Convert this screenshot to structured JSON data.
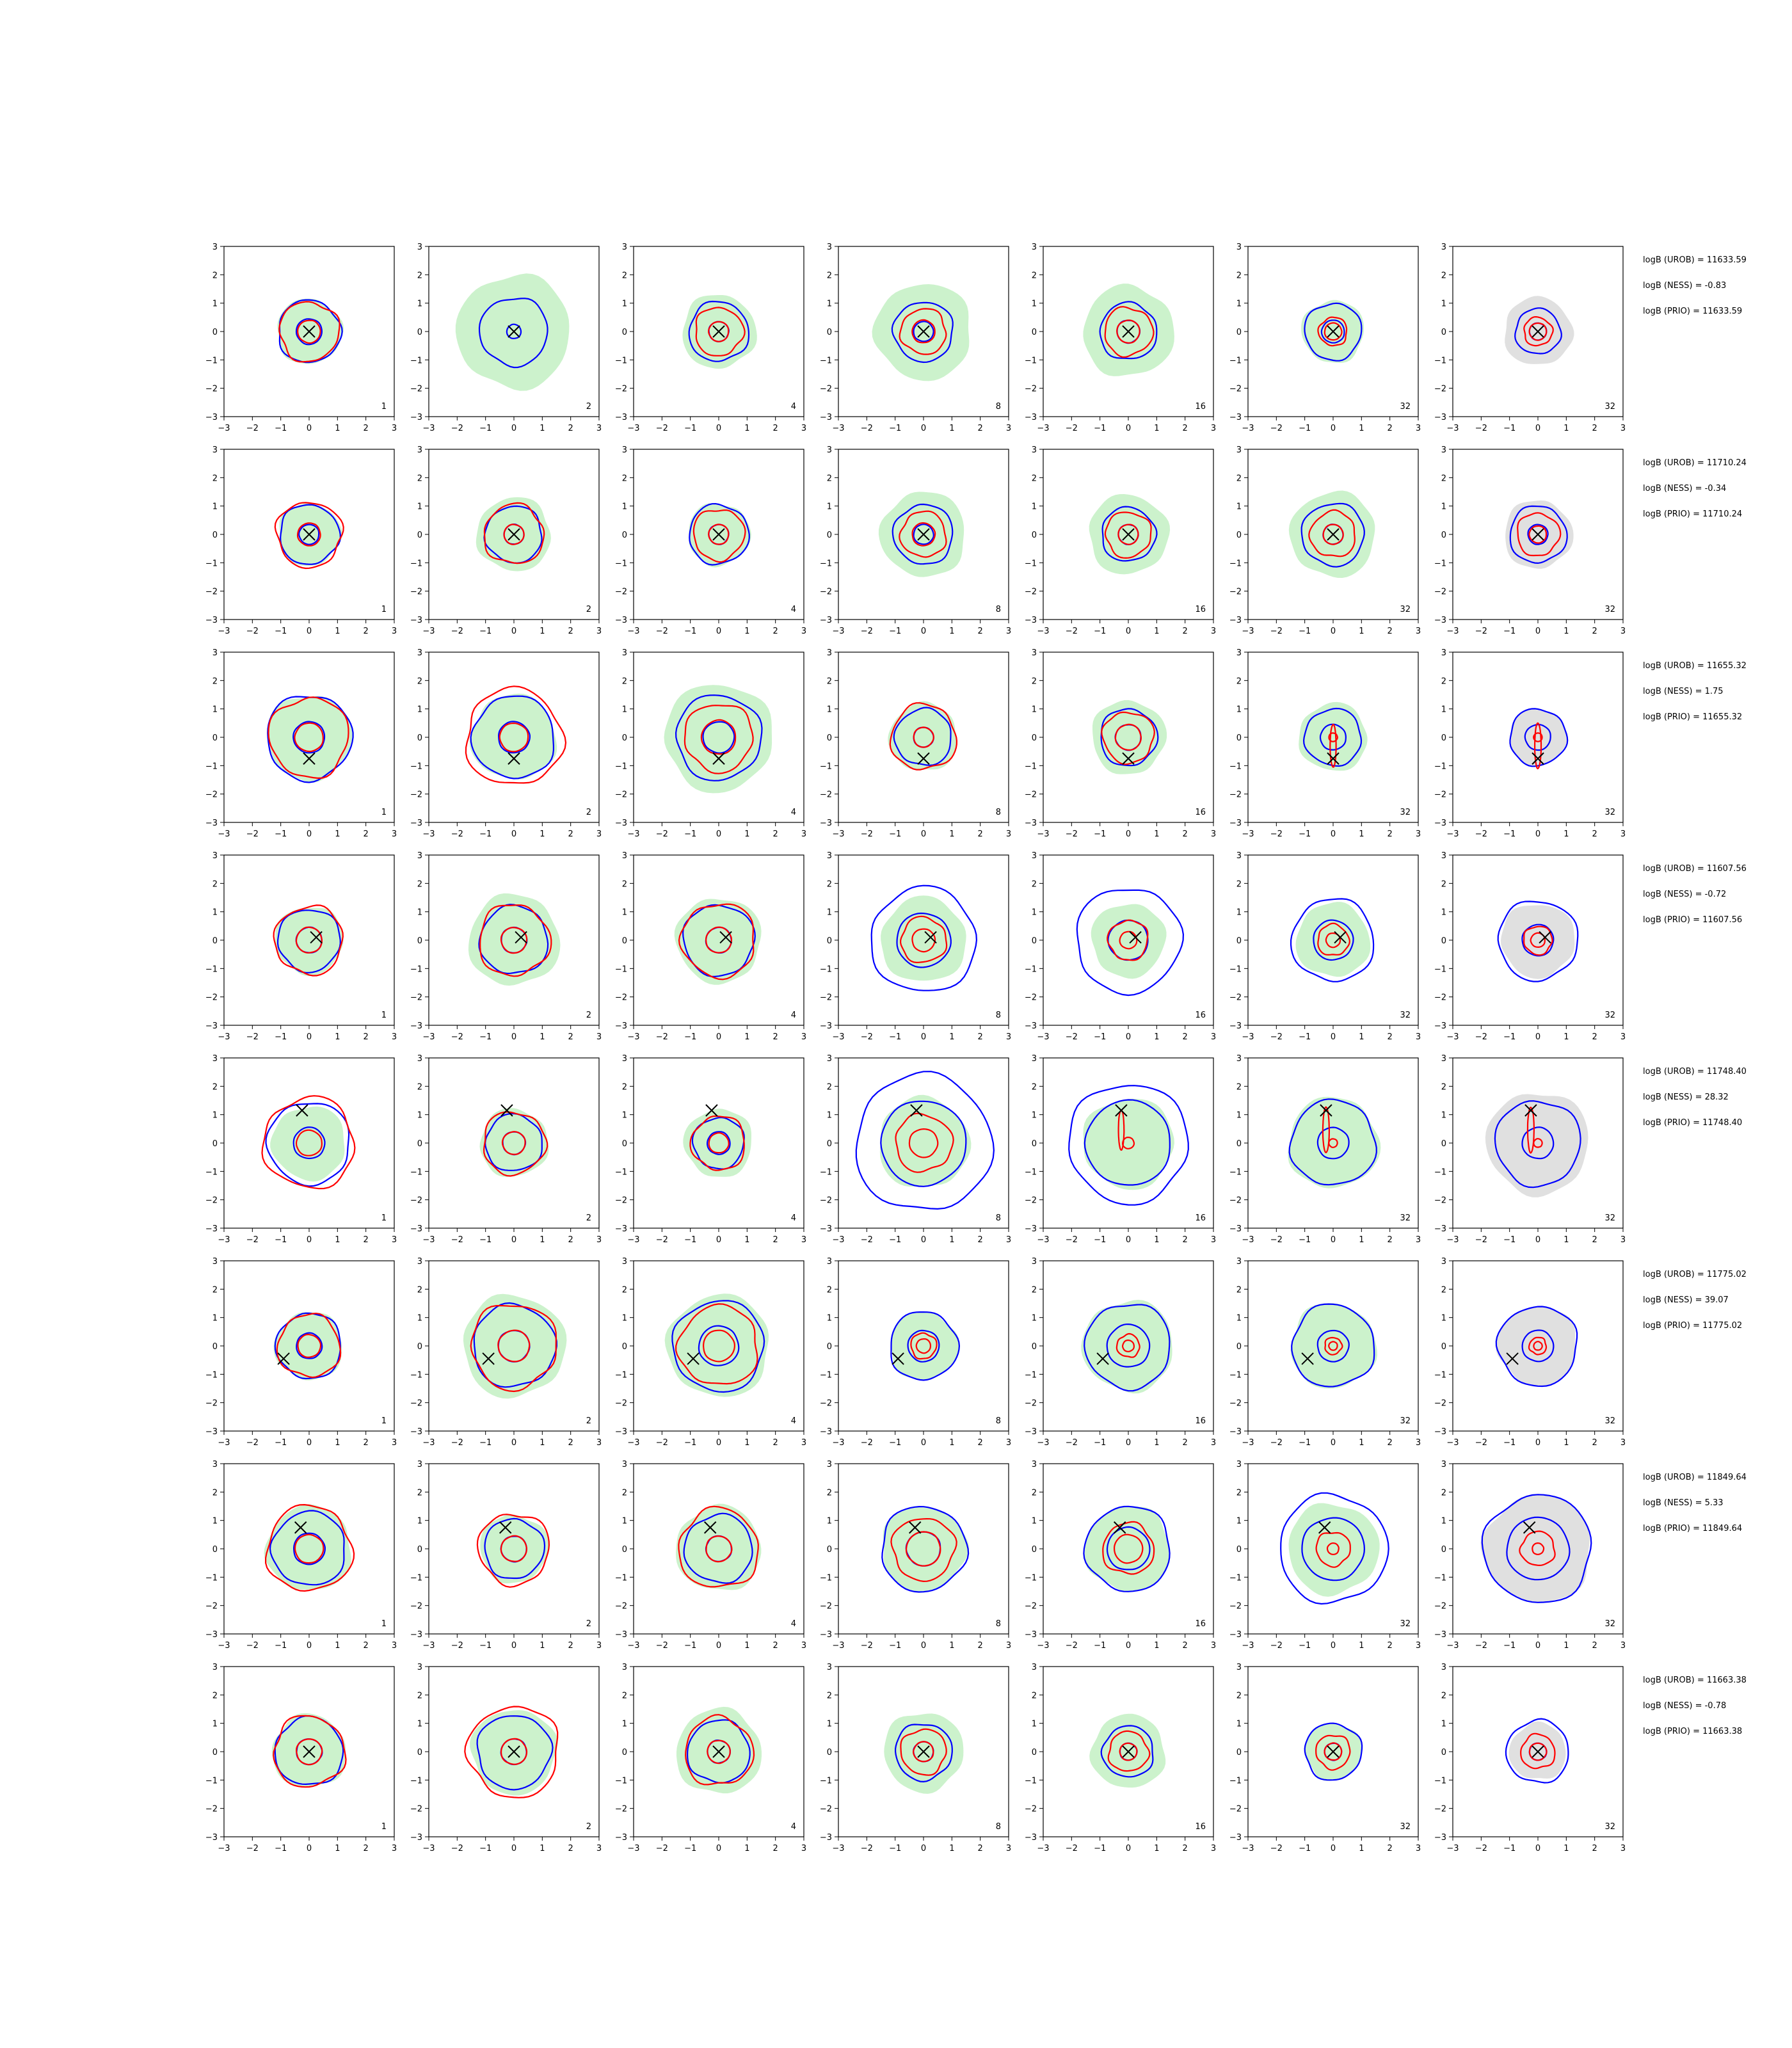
{
  "figure": {
    "rows": [
      {
        "corner_labels": [
          "1",
          "2",
          "4",
          "8",
          "16",
          "32",
          "32"
        ],
        "annotations": [
          "logB (UROB) = 11633.59",
          "logB (NESS) = -0.83",
          "logB (PRIO) = 11633.59"
        ],
        "markers": [
          [
            0,
            0
          ],
          [
            0,
            0
          ],
          [
            0,
            0
          ],
          [
            0,
            0
          ],
          [
            0,
            0
          ],
          [
            0,
            0
          ],
          [
            0,
            0
          ]
        ]
      },
      {
        "corner_labels": [
          "1",
          "2",
          "4",
          "8",
          "16",
          "32",
          "32"
        ],
        "annotations": [
          "logB (UROB) = 11710.24",
          "logB (NESS) = -0.34",
          "logB (PRIO) = 11710.24"
        ],
        "markers": [
          [
            0,
            0
          ],
          [
            0,
            0
          ],
          [
            0,
            0
          ],
          [
            0,
            0
          ],
          [
            0,
            0
          ],
          [
            0,
            0
          ],
          [
            0,
            0
          ]
        ]
      },
      {
        "corner_labels": [
          "1",
          "2",
          "4",
          "8",
          "16",
          "32",
          "32"
        ],
        "annotations": [
          "logB (UROB) = 11655.32",
          "logB (NESS) = 1.75",
          "logB (PRIO) = 11655.32"
        ],
        "markers": [
          [
            0,
            -0.75
          ],
          [
            0,
            -0.75
          ],
          [
            0,
            -0.75
          ],
          [
            0,
            -0.75
          ],
          [
            0,
            -0.75
          ],
          [
            0,
            -0.75
          ],
          [
            0,
            -0.75
          ]
        ]
      },
      {
        "corner_labels": [
          "1",
          "2",
          "4",
          "8",
          "16",
          "32",
          "32"
        ],
        "annotations": [
          "logB (UROB) = 11607.56",
          "logB (NESS) = -0.72",
          "logB (PRIO) = 11607.56"
        ],
        "markers": [
          [
            0.25,
            0.1
          ],
          [
            0.25,
            0.1
          ],
          [
            0.25,
            0.1
          ],
          [
            0.25,
            0.1
          ],
          [
            0.25,
            0.1
          ],
          [
            0.25,
            0.1
          ],
          [
            0.25,
            0.1
          ]
        ]
      },
      {
        "corner_labels": [
          "1",
          "2",
          "4",
          "8",
          "16",
          "32",
          "32"
        ],
        "annotations": [
          "logB (UROB) = 11748.40",
          "logB (NESS) = 28.32",
          "logB (PRIO) = 11748.40"
        ],
        "markers": [
          [
            -0.25,
            1.15
          ],
          [
            -0.25,
            1.15
          ],
          [
            -0.25,
            1.15
          ],
          [
            -0.25,
            1.15
          ],
          [
            -0.25,
            1.15
          ],
          [
            -0.25,
            1.15
          ],
          [
            -0.25,
            1.15
          ]
        ]
      },
      {
        "corner_labels": [
          "1",
          "2",
          "4",
          "8",
          "16",
          "32",
          "32"
        ],
        "annotations": [
          "logB (UROB) = 11775.02",
          "logB (NESS) = 39.07",
          "logB (PRIO) = 11775.02"
        ],
        "markers": [
          [
            -0.9,
            -0.45
          ],
          [
            -0.9,
            -0.45
          ],
          [
            -0.9,
            -0.45
          ],
          [
            -0.9,
            -0.45
          ],
          [
            -0.9,
            -0.45
          ],
          [
            -0.9,
            -0.45
          ],
          [
            -0.9,
            -0.45
          ]
        ]
      },
      {
        "corner_labels": [
          "1",
          "2",
          "4",
          "8",
          "16",
          "32",
          "32"
        ],
        "annotations": [
          "logB (UROB) = 11849.64",
          "logB (NESS) = 5.33",
          "logB (PRIO) = 11849.64"
        ],
        "markers": [
          [
            -0.3,
            0.75
          ],
          [
            -0.3,
            0.75
          ],
          [
            -0.3,
            0.75
          ],
          [
            -0.3,
            0.75
          ],
          [
            -0.3,
            0.75
          ],
          [
            -0.3,
            0.75
          ],
          [
            -0.3,
            0.75
          ]
        ]
      },
      {
        "corner_labels": [
          "1",
          "2",
          "4",
          "8",
          "16",
          "32",
          "32"
        ],
        "annotations": [
          "logB (UROB) = 11663.38",
          "logB (NESS) = -0.78",
          "logB (PRIO) = 11663.38"
        ],
        "markers": [
          [
            0,
            0
          ],
          [
            0,
            0
          ],
          [
            0,
            0
          ],
          [
            0,
            0
          ],
          [
            0,
            0
          ],
          [
            0,
            0
          ],
          [
            0,
            0
          ]
        ]
      }
    ]
  },
  "chart_data": {
    "type": "contour",
    "xlim": [
      -3,
      3
    ],
    "ylim": [
      -3,
      3
    ],
    "xticks": [
      "−3",
      "−2",
      "−1",
      "0",
      "1",
      "2",
      "3"
    ],
    "yticks": [
      "−3",
      "−2",
      "−1",
      "0",
      "1",
      "2",
      "3"
    ],
    "grid": false,
    "colors": {
      "fill": "#ccf2cc",
      "fill_last": "#e0e0e0",
      "outer": "#0000ff",
      "inner": "#ff0000",
      "marker": "#000000"
    },
    "panels": [
      [
        {
          "fill_r": 1.15,
          "blue": [
            1.1,
            0.45
          ],
          "red": [
            1.05,
            0.4
          ]
        },
        {
          "fill_r": 2.0,
          "blue": [
            1.2,
            0.25
          ],
          "red": []
        },
        {
          "fill_r": 1.3,
          "blue": [
            1.05,
            0.35
          ],
          "red": [
            0.85,
            0.35
          ]
        },
        {
          "fill_r": 1.7,
          "blue": [
            1.05,
            0.35
          ],
          "red": [
            0.8,
            0.4
          ]
        },
        {
          "fill_r": 1.6,
          "blue": [
            1.0,
            0.4
          ],
          "red": [
            0.85,
            0.4
          ]
        },
        {
          "fill_r": 1.1,
          "blue": [
            1.0,
            0.4
          ],
          "red": [
            0.5,
            0.3
          ]
        },
        {
          "fill_r": 1.2,
          "blue": [
            0.8,
            0.3
          ],
          "red": [
            0.5,
            0.3
          ]
        }
      ],
      [
        {
          "fill_r": 1.1,
          "blue": [
            1.05,
            0.35
          ],
          "red": [
            1.15,
            0.4
          ]
        },
        {
          "fill_r": 1.3,
          "blue": [
            1.0,
            0.35
          ],
          "red": [
            1.05,
            0.35
          ]
        },
        {
          "fill_r": 1.1,
          "blue": [
            1.05,
            0.35
          ],
          "red": [
            0.9,
            0.35
          ]
        },
        {
          "fill_r": 1.5,
          "blue": [
            1.05,
            0.35
          ],
          "red": [
            0.8,
            0.4
          ]
        },
        {
          "fill_r": 1.4,
          "blue": [
            0.95,
            0.35
          ],
          "red": [
            0.8,
            0.35
          ]
        },
        {
          "fill_r": 1.5,
          "blue": [
            1.1,
            0.35
          ],
          "red": [
            0.8,
            0.35
          ]
        },
        {
          "fill_r": 1.2,
          "blue": [
            1.0,
            0.35
          ],
          "red": [
            0.75,
            0.3
          ]
        }
      ],
      [
        {
          "fill_r": 1.5,
          "blue": [
            1.5,
            0.55
          ],
          "red": [
            1.4,
            0.5
          ]
        },
        {
          "fill_r": 1.5,
          "blue": [
            1.45,
            0.55
          ],
          "red": [
            1.7,
            0.5
          ]
        },
        {
          "fill_r": 1.9,
          "blue": [
            1.5,
            0.55
          ],
          "red": [
            1.2,
            0.6
          ]
        },
        {
          "fill_r": 1.2,
          "blue": [
            1.0,
            0.35
          ],
          "red": [
            1.15,
            0.35
          ]
        },
        {
          "fill_r": 1.3,
          "blue": [
            1.0,
            0.45
          ],
          "red": [
            0.9,
            0.45
          ]
        },
        {
          "fill_r": 1.2,
          "blue": [
            1.0,
            0.45
          ],
          "red": [
            1.5,
            0.15
          ]
        },
        {
          "fill_r": 1.0,
          "blue": [
            1.0,
            0.45
          ],
          "red": [
            1.6,
            0.15
          ]
        }
      ],
      [
        {
          "fill_r": 1.2,
          "blue": [
            1.1,
            0.45
          ],
          "red": [
            1.2,
            0.45
          ]
        },
        {
          "fill_r": 1.6,
          "blue": [
            1.2,
            0.45
          ],
          "red": [
            1.25,
            0.45
          ]
        },
        {
          "fill_r": 1.5,
          "blue": [
            1.25,
            0.45
          ],
          "red": [
            1.3,
            0.45
          ]
        },
        {
          "fill_r": 1.5,
          "blue": [
            1.85,
            0.95
          ],
          "red": [
            0.8,
            0.4
          ]
        },
        {
          "fill_r": 1.3,
          "blue": [
            1.85,
            0.7
          ],
          "red": [
            0.7,
            0.3
          ]
        },
        {
          "fill_r": 1.3,
          "blue": [
            1.45,
            0.7
          ],
          "red": [
            0.55,
            0.25
          ]
        },
        {
          "fill_r": 1.3,
          "blue": [
            1.4,
            0.55
          ],
          "red": [
            0.5,
            0.25
          ]
        }
      ],
      [
        {
          "fill_r": 1.3,
          "blue": [
            1.45,
            0.55
          ],
          "red": [
            1.6,
            0.45
          ]
        },
        {
          "fill_r": 1.2,
          "blue": [
            1.0,
            0.4
          ],
          "red": [
            1.1,
            0.4
          ]
        },
        {
          "fill_r": 1.2,
          "blue": [
            0.9,
            0.4
          ],
          "red": [
            0.95,
            0.35
          ]
        },
        {
          "fill_r": 1.6,
          "blue": [
            2.4,
            1.5
          ],
          "red": [
            1.0,
            0.5
          ]
        },
        {
          "fill_r": 1.6,
          "blue": [
            2.1,
            1.5
          ],
          "red": [
            1.4,
            0.2
          ]
        },
        {
          "fill_r": 1.6,
          "blue": [
            1.5,
            0.55
          ],
          "red": [
            1.6,
            0.15
          ]
        },
        {
          "fill_r": 1.8,
          "blue": [
            1.5,
            0.55
          ],
          "red": [
            1.6,
            0.15
          ]
        }
      ],
      [
        {
          "fill_r": 1.2,
          "blue": [
            1.15,
            0.45
          ],
          "red": [
            1.1,
            0.4
          ]
        },
        {
          "fill_r": 1.8,
          "blue": [
            1.45,
            0.55
          ],
          "red": [
            1.5,
            0.55
          ]
        },
        {
          "fill_r": 1.8,
          "blue": [
            1.6,
            0.7
          ],
          "red": [
            1.4,
            0.55
          ]
        },
        {
          "fill_r": 1.2,
          "blue": [
            1.2,
            0.55
          ],
          "red": [
            0.45,
            0.25
          ]
        },
        {
          "fill_r": 1.6,
          "blue": [
            1.5,
            0.75
          ],
          "red": [
            0.4,
            0.2
          ]
        },
        {
          "fill_r": 1.5,
          "blue": [
            1.45,
            0.55
          ],
          "red": [
            0.3,
            0.15
          ]
        },
        {
          "fill_r": 1.4,
          "blue": [
            1.4,
            0.55
          ],
          "red": [
            0.3,
            0.15
          ]
        }
      ],
      [
        {
          "fill_r": 1.5,
          "blue": [
            1.3,
            0.55
          ],
          "red": [
            1.5,
            0.5
          ]
        },
        {
          "fill_r": 1.2,
          "blue": [
            1.05,
            0.45
          ],
          "red": [
            1.25,
            0.45
          ]
        },
        {
          "fill_r": 1.5,
          "blue": [
            1.2,
            0.45
          ],
          "red": [
            1.4,
            0.45
          ]
        },
        {
          "fill_r": 1.5,
          "blue": [
            1.5,
            0.6
          ],
          "red": [
            1.1,
            0.6
          ]
        },
        {
          "fill_r": 1.5,
          "blue": [
            1.5,
            0.75
          ],
          "red": [
            0.9,
            0.5
          ]
        },
        {
          "fill_r": 1.6,
          "blue": [
            1.9,
            1.1
          ],
          "red": [
            0.6,
            0.2
          ]
        },
        {
          "fill_r": 1.9,
          "blue": [
            1.9,
            1.1
          ],
          "red": [
            0.6,
            0.2
          ]
        }
      ],
      [
        {
          "fill_r": 1.3,
          "blue": [
            1.2,
            0.45
          ],
          "red": [
            1.25,
            0.45
          ]
        },
        {
          "fill_r": 1.5,
          "blue": [
            1.3,
            0.45
          ],
          "red": [
            1.6,
            0.45
          ]
        },
        {
          "fill_r": 1.5,
          "blue": [
            1.1,
            0.4
          ],
          "red": [
            1.2,
            0.4
          ]
        },
        {
          "fill_r": 1.4,
          "blue": [
            1.0,
            0.35
          ],
          "red": [
            0.8,
            0.35
          ]
        },
        {
          "fill_r": 1.3,
          "blue": [
            0.9,
            0.3
          ],
          "red": [
            0.7,
            0.3
          ]
        },
        {
          "fill_r": 1.0,
          "blue": [
            1.0,
            0.3
          ],
          "red": [
            0.6,
            0.3
          ]
        },
        {
          "fill_r": 1.0,
          "blue": [
            1.1,
            0.3
          ],
          "red": [
            0.6,
            0.3
          ]
        }
      ]
    ]
  }
}
